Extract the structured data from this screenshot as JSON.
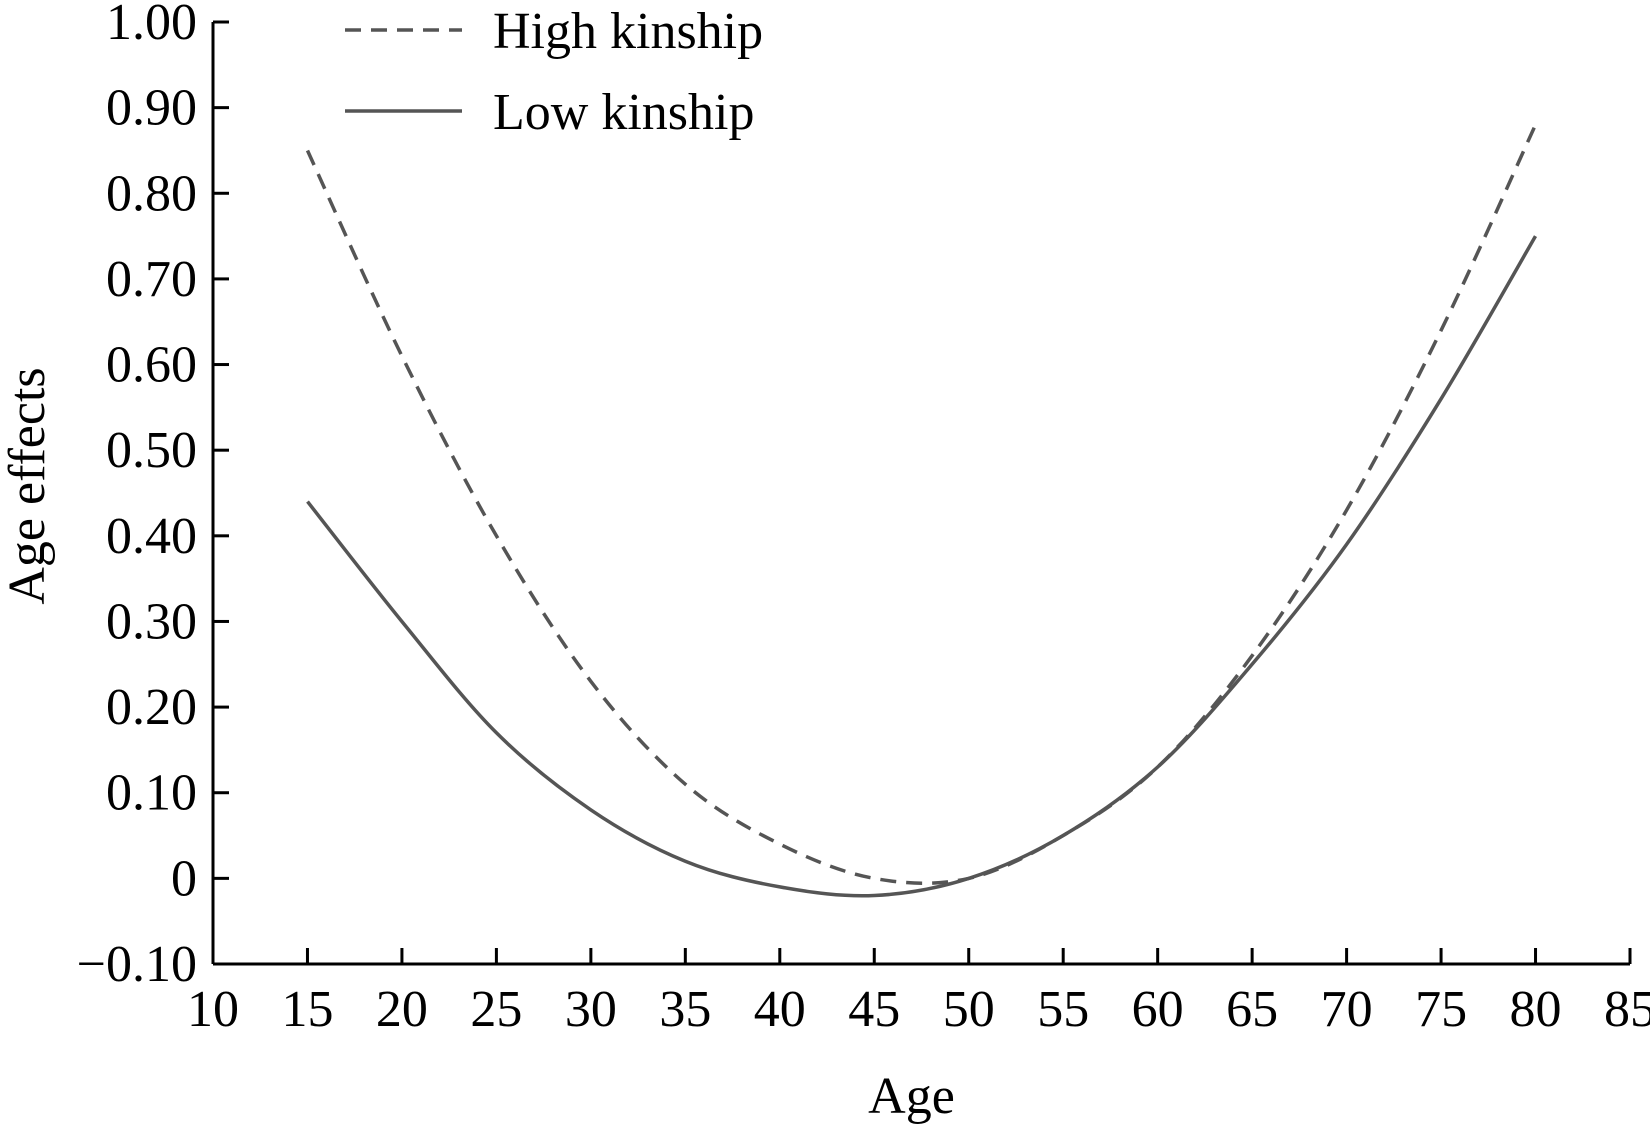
{
  "chart_data": {
    "type": "line",
    "title": "",
    "xlabel": "Age",
    "ylabel": "Age effects",
    "xlim": [
      10,
      85
    ],
    "ylim": [
      -0.1,
      1.0
    ],
    "x_ticks": [
      10,
      15,
      20,
      25,
      30,
      35,
      40,
      45,
      50,
      55,
      60,
      65,
      70,
      75,
      80,
      85
    ],
    "x_tick_labels": [
      "10",
      "15",
      "20",
      "25",
      "30",
      "35",
      "40",
      "45",
      "50",
      "55",
      "60",
      "65",
      "70",
      "75",
      "80",
      "85"
    ],
    "y_ticks": [
      -0.1,
      0,
      0.1,
      0.2,
      0.3,
      0.4,
      0.5,
      0.6,
      0.7,
      0.8,
      0.9,
      1.0
    ],
    "y_tick_labels": [
      "−0.10",
      "0",
      "0.10",
      "0.20",
      "0.30",
      "0.40",
      "0.50",
      "0.60",
      "0.70",
      "0.80",
      "0.90",
      "1.00"
    ],
    "grid": false,
    "legend": {
      "position": "top-left"
    },
    "line_color": "#555555",
    "series": [
      {
        "name": "High kinship",
        "style": "dashed",
        "x": [
          15,
          20,
          25,
          30,
          35,
          40,
          45,
          50,
          55,
          60,
          65,
          70,
          75,
          80
        ],
        "y": [
          0.85,
          0.61,
          0.4,
          0.23,
          0.11,
          0.04,
          0.0,
          0.0,
          0.05,
          0.13,
          0.26,
          0.43,
          0.64,
          0.88
        ]
      },
      {
        "name": "Low kinship",
        "style": "solid",
        "x": [
          15,
          20,
          25,
          30,
          35,
          40,
          45,
          50,
          55,
          60,
          65,
          70,
          75,
          80
        ],
        "y": [
          0.44,
          0.3,
          0.17,
          0.08,
          0.02,
          -0.01,
          -0.02,
          0.0,
          0.05,
          0.13,
          0.25,
          0.39,
          0.56,
          0.75
        ]
      }
    ]
  }
}
